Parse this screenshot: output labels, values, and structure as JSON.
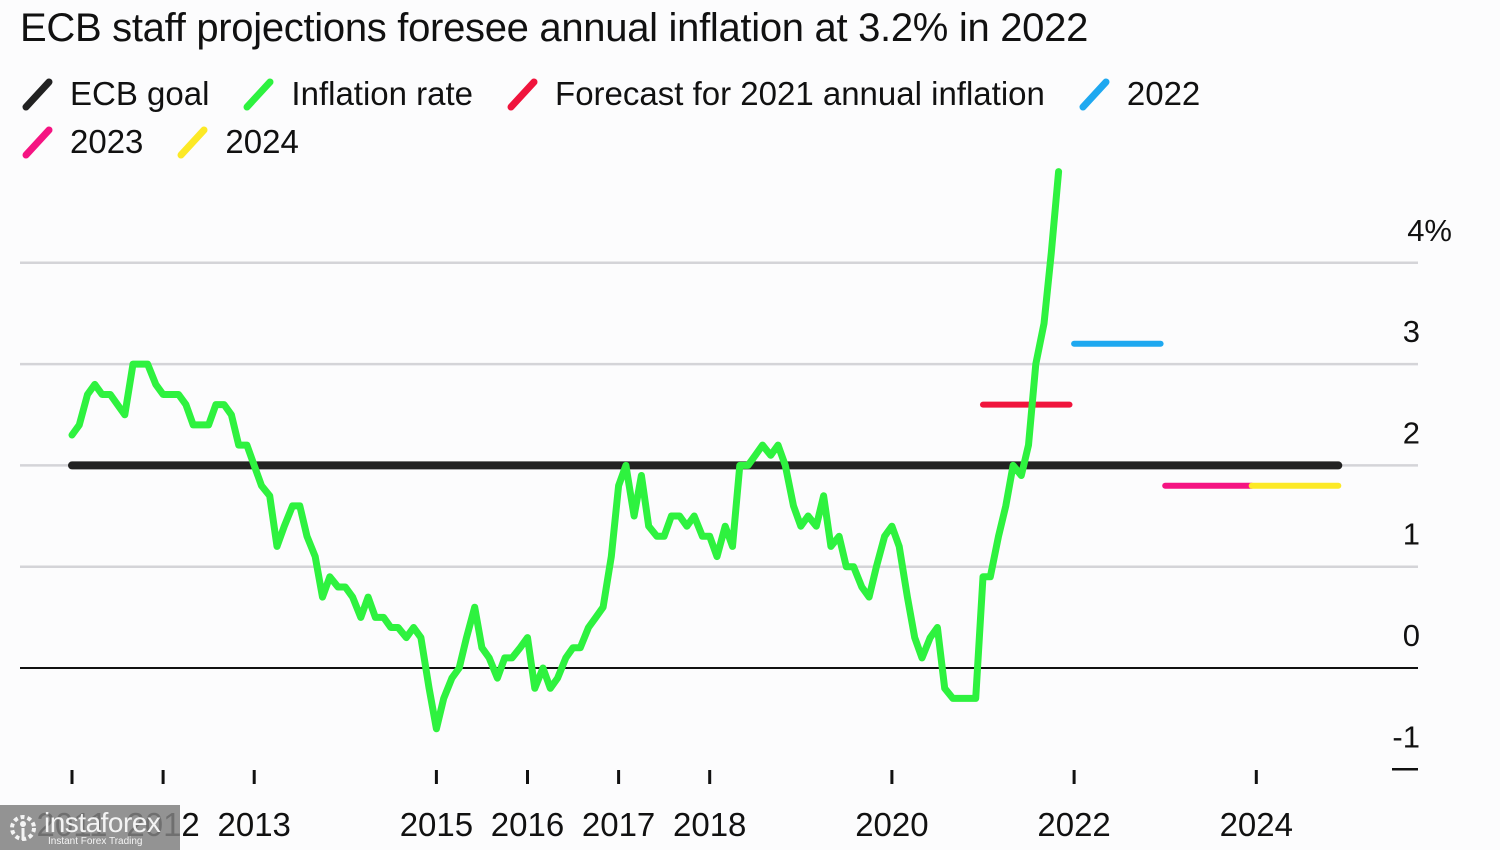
{
  "chart_data": {
    "type": "line",
    "title": "ECB staff projections foresee annual inflation at 3.2% in 2022",
    "xlabel": "",
    "ylabel": "",
    "ylim": [
      -1,
      4.7
    ],
    "xlim": [
      2010.8,
      2025.3
    ],
    "grid": true,
    "y_ticks": [
      {
        "value": 4,
        "label": "4%"
      },
      {
        "value": 3,
        "label": "3"
      },
      {
        "value": 2,
        "label": "2"
      },
      {
        "value": 1,
        "label": "1"
      },
      {
        "value": 0,
        "label": "0"
      },
      {
        "value": -1,
        "label": "-1"
      }
    ],
    "x_ticks": [
      {
        "value": 2011,
        "label": "2011"
      },
      {
        "value": 2012,
        "label": "2012"
      },
      {
        "value": 2013,
        "label": "2013"
      },
      {
        "value": 2015,
        "label": "2015"
      },
      {
        "value": 2016,
        "label": "2016"
      },
      {
        "value": 2017,
        "label": "2017"
      },
      {
        "value": 2018,
        "label": "2018"
      },
      {
        "value": 2020,
        "label": "2020"
      },
      {
        "value": 2022,
        "label": "2022"
      },
      {
        "value": 2024,
        "label": "2024"
      }
    ],
    "legend": [
      {
        "name": "ECB goal",
        "color": "#222222",
        "row": 1
      },
      {
        "name": "Inflation rate",
        "color": "#2ef23f",
        "row": 1
      },
      {
        "name": "Forecast for 2021 annual inflation",
        "color": "#f0143c",
        "row": 1
      },
      {
        "name": "2022",
        "color": "#1ea8f0",
        "row": 1
      },
      {
        "name": "2023",
        "color": "#f51482",
        "row": 2
      },
      {
        "name": "2024",
        "color": "#fce926",
        "row": 2
      }
    ],
    "legend_position": "top-left",
    "series": [
      {
        "name": "ECB goal",
        "color": "#222222",
        "x": [
          2011.0,
          2024.9
        ],
        "y": [
          2.0,
          2.0
        ]
      },
      {
        "name": "Inflation rate",
        "color": "#2ef23f",
        "x": [
          2011.0,
          2011.08,
          2011.17,
          2011.25,
          2011.33,
          2011.42,
          2011.5,
          2011.58,
          2011.67,
          2011.75,
          2011.83,
          2011.92,
          2012.0,
          2012.08,
          2012.17,
          2012.25,
          2012.33,
          2012.42,
          2012.5,
          2012.58,
          2012.67,
          2012.75,
          2012.83,
          2012.92,
          2013.0,
          2013.08,
          2013.17,
          2013.25,
          2013.33,
          2013.42,
          2013.5,
          2013.58,
          2013.67,
          2013.75,
          2013.83,
          2013.92,
          2014.0,
          2014.08,
          2014.17,
          2014.25,
          2014.33,
          2014.42,
          2014.5,
          2014.58,
          2014.67,
          2014.75,
          2014.83,
          2014.92,
          2015.0,
          2015.08,
          2015.17,
          2015.25,
          2015.33,
          2015.42,
          2015.5,
          2015.58,
          2015.67,
          2015.75,
          2015.83,
          2015.92,
          2016.0,
          2016.08,
          2016.17,
          2016.25,
          2016.33,
          2016.42,
          2016.5,
          2016.58,
          2016.67,
          2016.75,
          2016.83,
          2016.92,
          2017.0,
          2017.08,
          2017.17,
          2017.25,
          2017.33,
          2017.42,
          2017.5,
          2017.58,
          2017.67,
          2017.75,
          2017.83,
          2017.92,
          2018.0,
          2018.08,
          2018.17,
          2018.25,
          2018.33,
          2018.42,
          2018.5,
          2018.58,
          2018.67,
          2018.75,
          2018.83,
          2018.92,
          2019.0,
          2019.08,
          2019.17,
          2019.25,
          2019.33,
          2019.42,
          2019.5,
          2019.58,
          2019.67,
          2019.75,
          2019.83,
          2019.92,
          2020.0,
          2020.08,
          2020.17,
          2020.25,
          2020.33,
          2020.42,
          2020.5,
          2020.58,
          2020.67,
          2020.75,
          2020.83,
          2020.92,
          2021.0,
          2021.08,
          2021.17,
          2021.25,
          2021.33,
          2021.42,
          2021.5,
          2021.58,
          2021.67,
          2021.75,
          2021.83
        ],
        "y": [
          2.3,
          2.4,
          2.7,
          2.8,
          2.7,
          2.7,
          2.6,
          2.5,
          3.0,
          3.0,
          3.0,
          2.8,
          2.7,
          2.7,
          2.7,
          2.6,
          2.4,
          2.4,
          2.4,
          2.6,
          2.6,
          2.5,
          2.2,
          2.2,
          2.0,
          1.8,
          1.7,
          1.2,
          1.4,
          1.6,
          1.6,
          1.3,
          1.1,
          0.7,
          0.9,
          0.8,
          0.8,
          0.7,
          0.5,
          0.7,
          0.5,
          0.5,
          0.4,
          0.4,
          0.3,
          0.4,
          0.3,
          -0.2,
          -0.6,
          -0.3,
          -0.1,
          0.0,
          0.3,
          0.6,
          0.2,
          0.1,
          -0.1,
          0.1,
          0.1,
          0.2,
          0.3,
          -0.2,
          0.0,
          -0.2,
          -0.1,
          0.1,
          0.2,
          0.2,
          0.4,
          0.5,
          0.6,
          1.1,
          1.8,
          2.0,
          1.5,
          1.9,
          1.4,
          1.3,
          1.3,
          1.5,
          1.5,
          1.4,
          1.5,
          1.3,
          1.3,
          1.1,
          1.4,
          1.2,
          2.0,
          2.0,
          2.1,
          2.2,
          2.1,
          2.2,
          2.0,
          1.6,
          1.4,
          1.5,
          1.4,
          1.7,
          1.2,
          1.3,
          1.0,
          1.0,
          0.8,
          0.7,
          1.0,
          1.3,
          1.4,
          1.2,
          0.7,
          0.3,
          0.1,
          0.3,
          0.4,
          -0.2,
          -0.3,
          -0.3,
          -0.3,
          -0.3,
          0.9,
          0.9,
          1.3,
          1.6,
          2.0,
          1.9,
          2.2,
          3.0,
          3.4,
          4.1,
          4.9
        ]
      },
      {
        "name": "Forecast for 2021 annual inflation",
        "color": "#f0143c",
        "x": [
          2021.0,
          2021.95
        ],
        "y": [
          2.6,
          2.6
        ]
      },
      {
        "name": "2022",
        "color": "#1ea8f0",
        "x": [
          2022.0,
          2022.95
        ],
        "y": [
          3.2,
          3.2
        ]
      },
      {
        "name": "2023",
        "color": "#f51482",
        "x": [
          2023.0,
          2023.95
        ],
        "y": [
          1.8,
          1.8
        ]
      },
      {
        "name": "2024",
        "color": "#fce926",
        "x": [
          2023.95,
          2024.9
        ],
        "y": [
          1.8,
          1.8
        ]
      }
    ]
  },
  "watermark": {
    "brand": "instaforex",
    "tagline": "Instant Forex Trading"
  }
}
